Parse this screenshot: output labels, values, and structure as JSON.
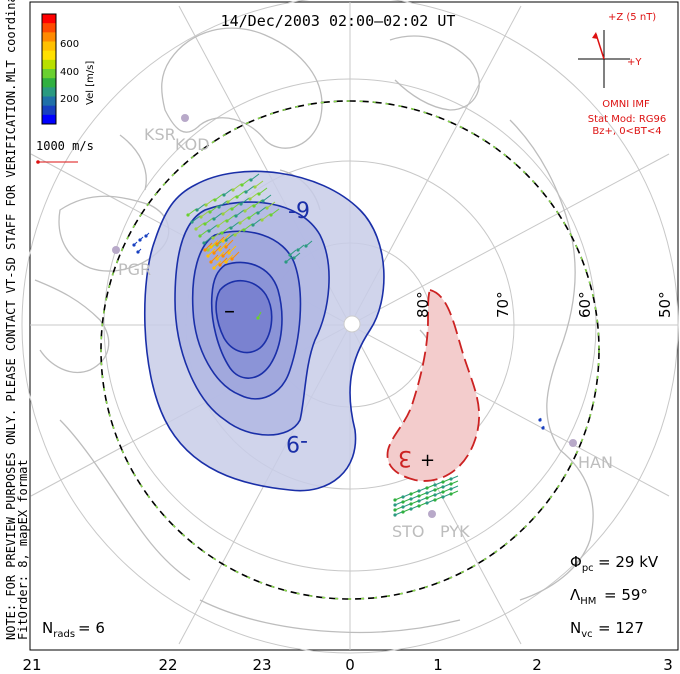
{
  "title": "14/Dec/2003 02:00–02:02 UT",
  "note": {
    "line1": "NOTE: FOR PREVIEW PURPOSES ONLY. PLEASE CONTACT VT-SD STAFF FOR VERIFICATION.",
    "line2": "FitOrder: 8, mapEX format",
    "coords": "MLT coordinates"
  },
  "color_scale": {
    "label": "Vel [m/s]",
    "ticks": [
      "600",
      "400",
      "200"
    ],
    "colors": [
      "#ff0000",
      "#ff4a00",
      "#ff8a00",
      "#ffc000",
      "#ffe000",
      "#b8e000",
      "#6ad030",
      "#30b040",
      "#2a9a80",
      "#2070a8",
      "#1840c0",
      "#0000ff"
    ]
  },
  "reference_vector": {
    "label": "1000 m/s"
  },
  "imf": {
    "axis_z": "+Z (5 nT)",
    "axis_y": "+Y",
    "source": "OMNI IMF",
    "model": "Stat Mod: RG96",
    "condition": "Bz+, 0<BT<4"
  },
  "latitude_labels": [
    "80°",
    "70°",
    "60°",
    "50°"
  ],
  "mlt_labels": [
    "21",
    "22",
    "23",
    "0",
    "1",
    "2",
    "3"
  ],
  "stations": [
    "KSR",
    "KOD",
    "PGR",
    "HAN",
    "STO",
    "PYK"
  ],
  "contour_labels": {
    "neg_a": "-9",
    "neg_b": "-9",
    "pos": "3",
    "min": "–",
    "max": "+"
  },
  "stats": {
    "phi_pc": {
      "symbol": "Φ",
      "sub": "pc",
      "value": "= 29 kV"
    },
    "lambda_hm": {
      "symbol": "Λ",
      "sub": "HM",
      "value": "= 59°"
    },
    "n_vc": {
      "symbol": "N",
      "sub": "vc",
      "value": "= 127"
    },
    "n_rads": {
      "symbol": "N",
      "sub": "rads",
      "value": "= 6"
    }
  },
  "colors": {
    "negative_contour": "#1a2fa8",
    "positive_contour": "#cc2222",
    "negative_fill": "#c8cde8",
    "positive_fill": "#f3cccc",
    "land": "#bdbdbd",
    "grid": "#c8c8c8",
    "annotation_red": "#dd1111"
  }
}
